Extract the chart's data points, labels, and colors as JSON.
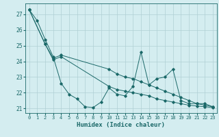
{
  "xlabel": "Humidex (Indice chaleur)",
  "bg_color": "#d4edf0",
  "grid_color": "#b0cfd4",
  "line_color": "#1a6868",
  "xlim_min": -0.5,
  "xlim_max": 23.5,
  "ylim_min": 20.7,
  "ylim_max": 27.7,
  "yticks": [
    21,
    22,
    23,
    24,
    25,
    26,
    27
  ],
  "xticks": [
    0,
    1,
    2,
    3,
    4,
    5,
    6,
    7,
    8,
    9,
    10,
    11,
    12,
    13,
    14,
    15,
    16,
    17,
    18,
    19,
    20,
    21,
    22,
    23
  ],
  "series1_x": [
    0,
    1,
    2,
    3,
    4,
    5,
    6,
    7,
    8,
    9,
    10,
    11,
    12,
    13,
    14,
    15,
    16,
    17,
    18,
    19,
    20,
    21,
    22,
    23
  ],
  "series1_y": [
    27.3,
    26.6,
    25.4,
    24.3,
    22.6,
    21.9,
    21.6,
    21.1,
    21.05,
    21.4,
    22.3,
    21.9,
    21.8,
    22.4,
    24.6,
    22.5,
    22.9,
    23.0,
    23.5,
    21.5,
    21.3,
    21.3,
    21.3,
    21.1
  ],
  "series2_x": [
    0,
    2,
    3,
    4,
    10,
    11,
    12,
    13,
    14,
    15,
    16,
    17,
    18,
    19,
    20,
    21,
    22,
    23
  ],
  "series2_y": [
    27.3,
    25.1,
    24.2,
    24.4,
    23.5,
    23.2,
    23.0,
    22.9,
    22.7,
    22.5,
    22.3,
    22.1,
    21.9,
    21.7,
    21.5,
    21.3,
    21.2,
    21.1
  ],
  "series3_x": [
    0,
    2,
    3,
    4,
    10,
    11,
    12,
    13,
    14,
    15,
    16,
    17,
    18,
    19,
    20,
    21,
    22,
    23
  ],
  "series3_y": [
    27.3,
    25.1,
    24.1,
    24.3,
    22.4,
    22.2,
    22.1,
    22.0,
    21.9,
    21.8,
    21.6,
    21.5,
    21.4,
    21.3,
    21.2,
    21.15,
    21.1,
    21.05
  ]
}
